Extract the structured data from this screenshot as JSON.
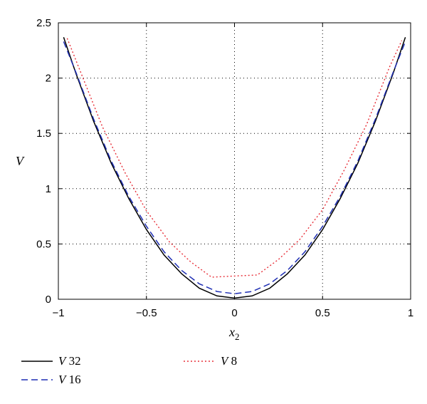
{
  "chart_data": {
    "type": "line",
    "title": "",
    "xlabel_main": "x",
    "xlabel_sub": "2",
    "ylabel": "V",
    "xlim": [
      -1,
      1
    ],
    "ylim": [
      0,
      2.5
    ],
    "x_ticks": [
      -1,
      -0.5,
      0,
      0.5,
      1
    ],
    "x_tick_labels": [
      "−1",
      "−0.5",
      "0",
      "0.5",
      "1"
    ],
    "y_ticks": [
      0,
      0.5,
      1,
      1.5,
      2,
      2.5
    ],
    "y_tick_labels": [
      "0",
      "0.5",
      "1",
      "1.5",
      "2",
      "2.5"
    ],
    "grid": true,
    "legend_position": "below-left",
    "series": [
      {
        "name_var": "V",
        "name_num": " 32",
        "color": "#000000",
        "dash": "solid",
        "x": [
          -0.97,
          -0.9,
          -0.8,
          -0.7,
          -0.6,
          -0.5,
          -0.4,
          -0.3,
          -0.2,
          -0.1,
          0,
          0.1,
          0.2,
          0.3,
          0.4,
          0.5,
          0.6,
          0.7,
          0.8,
          0.9,
          0.97
        ],
        "y": [
          2.37,
          2.04,
          1.61,
          1.23,
          0.91,
          0.63,
          0.4,
          0.23,
          0.1,
          0.03,
          0.01,
          0.03,
          0.1,
          0.23,
          0.4,
          0.63,
          0.91,
          1.23,
          1.61,
          2.04,
          2.37
        ]
      },
      {
        "name_var": "V",
        "name_num": " 16",
        "color": "#1f2fb4",
        "dash": "dashed",
        "x": [
          -0.97,
          -0.9,
          -0.8,
          -0.7,
          -0.6,
          -0.5,
          -0.4,
          -0.3,
          -0.2,
          -0.1,
          0,
          0.1,
          0.2,
          0.3,
          0.4,
          0.5,
          0.6,
          0.7,
          0.8,
          0.9,
          0.97
        ],
        "y": [
          2.33,
          2.05,
          1.63,
          1.25,
          0.93,
          0.66,
          0.43,
          0.26,
          0.14,
          0.07,
          0.05,
          0.07,
          0.14,
          0.26,
          0.43,
          0.66,
          0.93,
          1.25,
          1.63,
          2.05,
          2.33
        ]
      },
      {
        "name_var": "V",
        "name_num": " 8",
        "color": "#e8313a",
        "dash": "dotted",
        "x": [
          -0.95,
          -0.88,
          -0.75,
          -0.62,
          -0.5,
          -0.37,
          -0.25,
          -0.13,
          0,
          0.13,
          0.25,
          0.37,
          0.5,
          0.62,
          0.75,
          0.88,
          0.95
        ],
        "y": [
          2.36,
          2.08,
          1.56,
          1.14,
          0.8,
          0.52,
          0.34,
          0.2,
          0.21,
          0.22,
          0.36,
          0.54,
          0.81,
          1.16,
          1.58,
          2.1,
          2.34
        ]
      }
    ]
  }
}
